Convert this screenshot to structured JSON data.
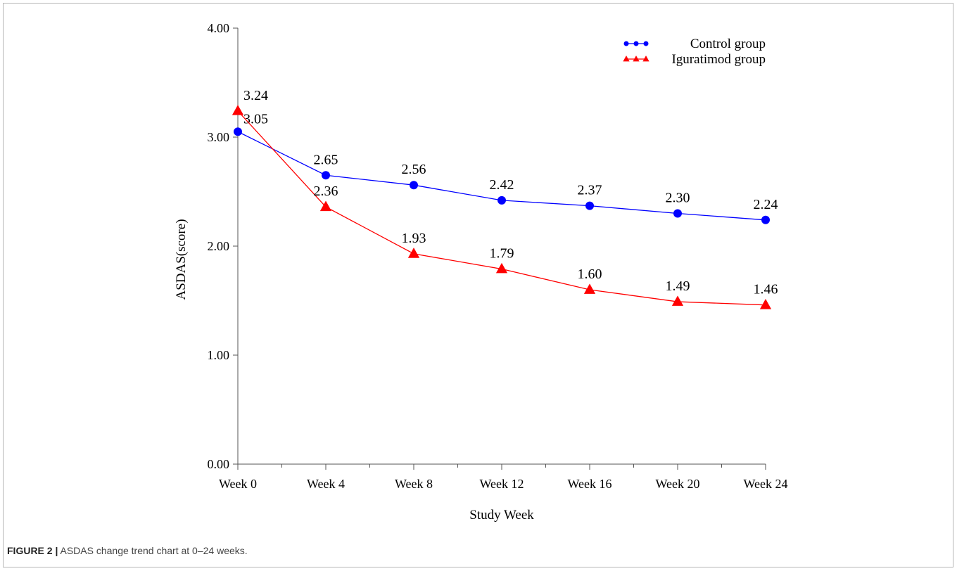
{
  "figure": {
    "label": "FIGURE 2 |",
    "caption": "ASDAS change trend chart at 0–24 weeks."
  },
  "chart_data": {
    "type": "line",
    "categories": [
      "Week 0",
      "Week 4",
      "Week 8",
      "Week 12",
      "Week 16",
      "Week 20",
      "Week 24"
    ],
    "xlabel": "Study Week",
    "ylabel": "ASDAS(score)",
    "ylim": [
      0,
      4
    ],
    "yticks": [
      "0.00",
      "1.00",
      "2.00",
      "3.00",
      "4.00"
    ],
    "grid": false,
    "legend_position": "top-right",
    "series": [
      {
        "name": "Control group",
        "color": "#0000ff",
        "marker": "circle",
        "values": [
          3.05,
          2.65,
          2.56,
          2.42,
          2.37,
          2.3,
          2.24
        ],
        "labels": [
          "3.05",
          "2.65",
          "2.56",
          "2.42",
          "2.37",
          "2.30",
          "2.24"
        ]
      },
      {
        "name": "Iguratimod group",
        "color": "#ff0000",
        "marker": "triangle",
        "values": [
          3.24,
          2.36,
          1.93,
          1.79,
          1.6,
          1.49,
          1.46
        ],
        "labels": [
          "3.24",
          "2.36",
          "1.93",
          "1.79",
          "1.60",
          "1.49",
          "1.46"
        ]
      }
    ]
  }
}
